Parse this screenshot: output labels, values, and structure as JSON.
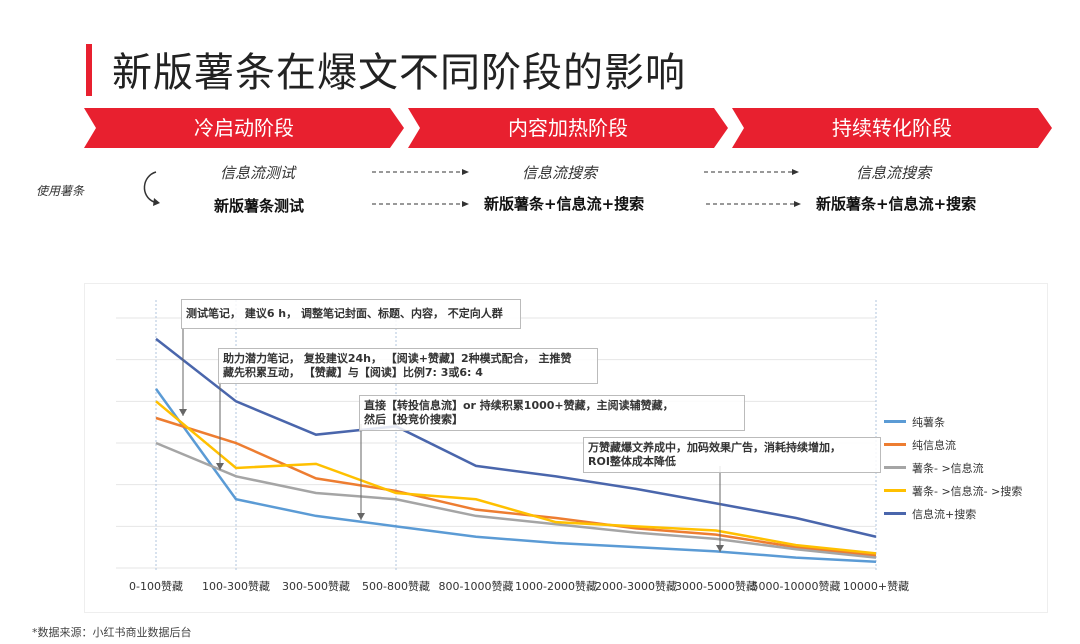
{
  "title": "新版薯条在爆文不同阶段的影响",
  "stages": [
    {
      "label": "冷启动阶段"
    },
    {
      "label": "内容加热阶段"
    },
    {
      "label": "持续转化阶段"
    }
  ],
  "flow": {
    "side_label": "使用薯条",
    "old_row": [
      "信息流测试",
      "信息流搜索",
      "信息流搜索"
    ],
    "new_row": [
      "新版薯条测试",
      "新版薯条+信息流+搜索",
      "新版薯条+信息流+搜索"
    ]
  },
  "colors": {
    "accent": "#e8202f"
  },
  "annotations": [
    "测试笔记， 建议6 h， 调整笔记封面、标题、内容， 不定向人群",
    "助力潜力笔记， 复投建议24h， 【阅读+赞藏】2种模式配合， 主推赞",
    "藏先积累互动，  【赞藏】与【阅读】比例7: 3或6: 4",
    "直接【转投信息流】or 持续积累1000+赞藏，主阅读辅赞藏，",
    "然后【投竞价搜索】",
    "万赞藏爆文养成中，加码效果广告，消耗持续增加，",
    "ROI整体成本降低"
  ],
  "chart_data": {
    "type": "line",
    "categories": [
      "0-100赞藏",
      "100-300赞藏",
      "300-500赞藏",
      "500-800赞藏",
      "800-1000赞藏",
      "1000-2000赞藏",
      "2000-3000赞藏",
      "3000-5000赞藏",
      "5000-10000赞藏",
      "10000+赞藏"
    ],
    "series": [
      {
        "name": "纯薯条",
        "color": "#5b9bd5",
        "values": [
          86,
          33,
          25,
          20,
          15,
          12,
          10,
          8,
          5,
          3
        ]
      },
      {
        "name": "纯信息流",
        "color": "#ed7d31",
        "values": [
          72,
          60,
          43,
          37,
          28,
          24,
          19,
          16,
          10,
          6
        ]
      },
      {
        "name": "薯条- >信息流",
        "color": "#a5a5a5",
        "values": [
          60,
          44,
          36,
          33,
          25,
          21,
          17,
          14,
          9,
          5
        ]
      },
      {
        "name": "薯条- >信息流- >搜索",
        "color": "#ffc000",
        "values": [
          80,
          48,
          50,
          36,
          33,
          22,
          20,
          18,
          11,
          7
        ]
      },
      {
        "name": "信息流+搜索",
        "color": "#4a66ac",
        "values": [
          110,
          80,
          64,
          68,
          49,
          44,
          38,
          31,
          24,
          15
        ]
      }
    ],
    "ylim": [
      0,
      120
    ],
    "grid": true,
    "legend": "right"
  },
  "footnote": "*数据来源：小红书商业数据后台"
}
